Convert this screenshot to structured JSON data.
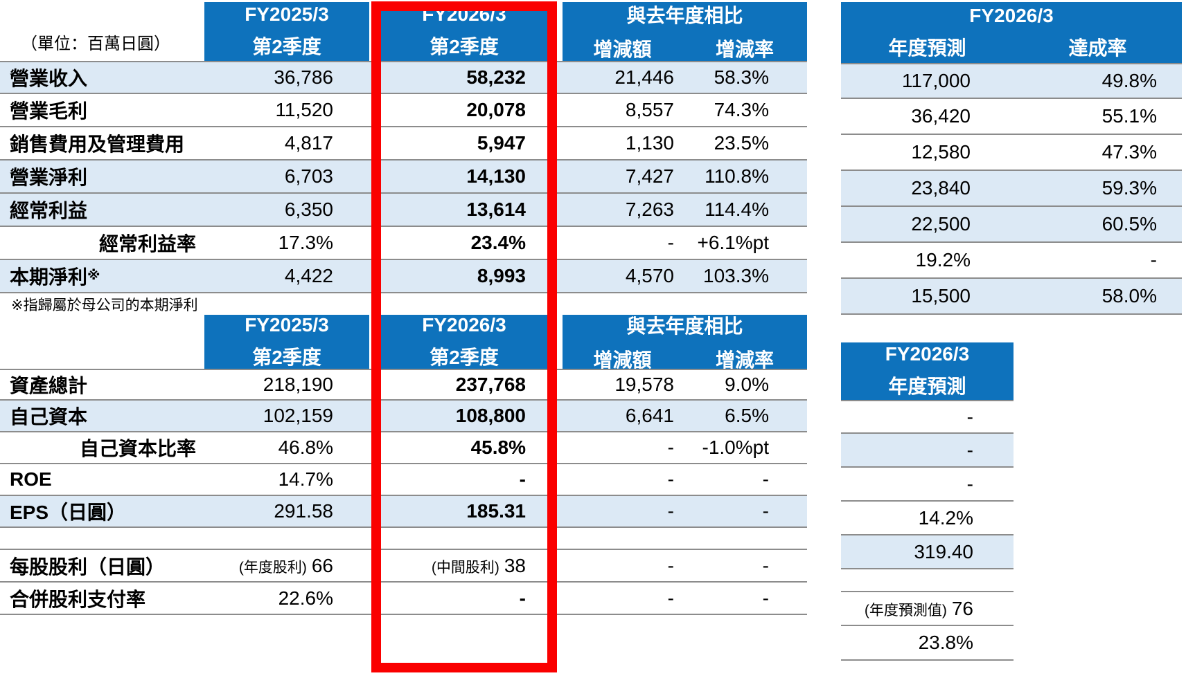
{
  "unit_label": "（單位：百萬日圓）",
  "footnote": "※指歸屬於母公司的本期淨利",
  "colors": {
    "header_blue": "#0E72BC",
    "row_highlight": "#DCE9F5",
    "highlight_box_red": "#FA0000",
    "row_line_gray": "#8C8C8C"
  },
  "t1": {
    "head": {
      "prev": [
        "FY2025/3",
        "第2季度"
      ],
      "curr": [
        "FY2026/3",
        "第2季度"
      ],
      "yoy_title": "與去年度相比",
      "yoy_sub": [
        "增減額",
        "增減率"
      ],
      "fy_title": "FY2026/3",
      "fy_sub": [
        "年度預測",
        "達成率"
      ]
    },
    "rows": [
      {
        "label": "營業收入",
        "prev": "36,786",
        "curr": "58,232",
        "amt": "21,446",
        "rate": "58.3%",
        "fcst": "117,000",
        "ach": "49.8%"
      },
      {
        "label": "營業毛利",
        "prev": "11,520",
        "curr": "20,078",
        "amt": "8,557",
        "rate": "74.3%",
        "fcst": "36,420",
        "ach": "55.1%"
      },
      {
        "label": "銷售費用及管理費用",
        "prev": "4,817",
        "curr": "5,947",
        "amt": "1,130",
        "rate": "23.5%",
        "fcst": "12,580",
        "ach": "47.3%"
      },
      {
        "label": "營業淨利",
        "prev": "6,703",
        "curr": "14,130",
        "amt": "7,427",
        "rate": "110.8%",
        "fcst": "23,840",
        "ach": "59.3%"
      },
      {
        "label": "經常利益",
        "prev": "6,350",
        "curr": "13,614",
        "amt": "7,263",
        "rate": "114.4%",
        "fcst": "22,500",
        "ach": "60.5%"
      },
      {
        "label": "經常利益率",
        "prev": "17.3%",
        "curr": "23.4%",
        "amt": "-",
        "rate": "+6.1%pt",
        "fcst": "19.2%",
        "ach": "-"
      },
      {
        "label": "本期淨利",
        "label_mark": "※",
        "prev": "4,422",
        "curr": "8,993",
        "amt": "4,570",
        "rate": "103.3%",
        "fcst": "15,500",
        "ach": "58.0%"
      }
    ]
  },
  "t2": {
    "head": {
      "prev": [
        "FY2025/3",
        "第2季度"
      ],
      "curr": [
        "FY2026/3",
        "第2季度"
      ],
      "yoy_title": "與去年度相比",
      "yoy_sub": [
        "增減額",
        "增減率"
      ],
      "fy_title": "FY2026/3",
      "fy_sub": [
        "年度預測"
      ]
    },
    "rows": [
      {
        "label": "資產總計",
        "prev": "218,190",
        "curr": "237,768",
        "amt": "19,578",
        "rate": "9.0%",
        "fcst": "-"
      },
      {
        "label": "自己資本",
        "prev": "102,159",
        "curr": "108,800",
        "amt": "6,641",
        "rate": "6.5%",
        "fcst": "-"
      },
      {
        "label": "自己資本比率",
        "prev": "46.8%",
        "curr": "45.8%",
        "amt": "-",
        "rate": "-1.0%pt",
        "fcst": "-"
      },
      {
        "label": "ROE",
        "prev": "14.7%",
        "curr": "-",
        "amt": "-",
        "rate": "-",
        "fcst": "14.2%"
      },
      {
        "label": "EPS（日圓）",
        "prev": "291.58",
        "curr": "185.31",
        "amt": "-",
        "rate": "-",
        "fcst": "319.40"
      },
      {
        "label": "每股股利（日圓）",
        "prev_note": "(年度股利)",
        "prev": "66",
        "curr_note": "(中間股利)",
        "curr": "38",
        "amt": "-",
        "rate": "-",
        "fcst_note": "(年度預測值)",
        "fcst": "76"
      },
      {
        "label": "合併股利支付率",
        "prev": "22.6%",
        "curr": "-",
        "amt": "-",
        "rate": "-",
        "fcst": "23.8%"
      }
    ]
  }
}
